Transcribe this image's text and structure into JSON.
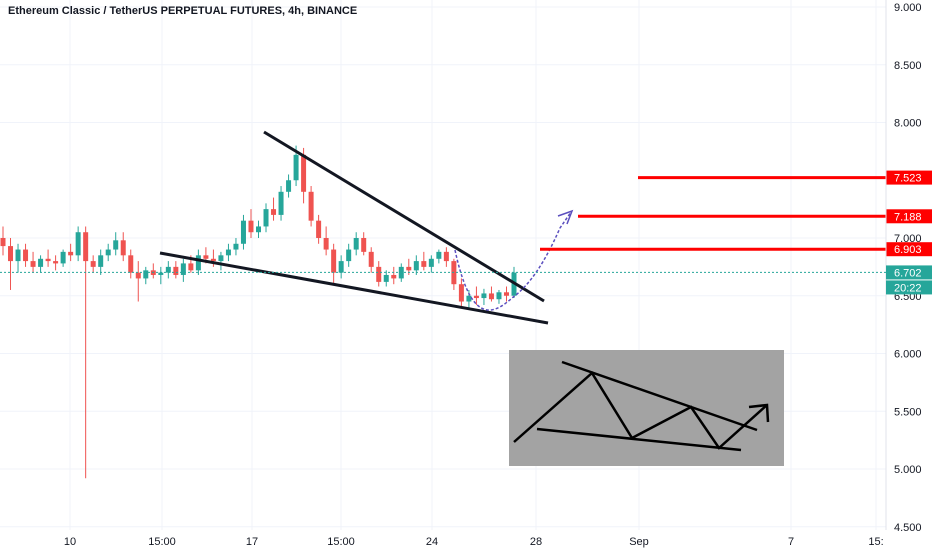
{
  "title": "Ethereum Classic / TetherUS PERPETUAL FUTURES, 4h, BINANCE",
  "colors": {
    "up": "#26a69a",
    "down": "#ef5350",
    "grid": "#f0f3fa",
    "axis_text": "#131722",
    "resistance": "#ff0000",
    "trendline": "#131722",
    "projection": "#5b4fbe",
    "current_price_bg": "#26a69a",
    "inset_bg": "#a3a3a3"
  },
  "chart_data": {
    "type": "candlestick",
    "title": "Ethereum Classic / TetherUS PERPETUAL FUTURES, 4h, BINANCE",
    "x_ticks": [
      "10",
      "15:00",
      "17",
      "15:00",
      "24",
      "28",
      "Sep",
      "7",
      "15:"
    ],
    "y_ticks": [
      "9.000",
      "8.500",
      "8.000",
      "7.000",
      "6.500",
      "6.000",
      "5.500",
      "5.000",
      "4.500"
    ],
    "ylim": [
      4.5,
      9.0
    ],
    "grid": true,
    "current_price": "6.702",
    "countdown": "20:22",
    "resistance_levels": [
      {
        "label": "7.523",
        "value": 7.523
      },
      {
        "label": "7.188",
        "value": 7.188
      },
      {
        "label": "6.903",
        "value": 6.903
      }
    ],
    "candles": [
      {
        "o": 7.0,
        "h": 7.1,
        "l": 6.85,
        "c": 6.93
      },
      {
        "o": 6.93,
        "h": 7.0,
        "l": 6.55,
        "c": 6.8
      },
      {
        "o": 6.8,
        "h": 6.95,
        "l": 6.7,
        "c": 6.9
      },
      {
        "o": 6.9,
        "h": 6.95,
        "l": 6.75,
        "c": 6.8
      },
      {
        "o": 6.8,
        "h": 6.88,
        "l": 6.7,
        "c": 6.75
      },
      {
        "o": 6.75,
        "h": 6.85,
        "l": 6.7,
        "c": 6.82
      },
      {
        "o": 6.82,
        "h": 6.9,
        "l": 6.75,
        "c": 6.8
      },
      {
        "o": 6.8,
        "h": 6.85,
        "l": 6.72,
        "c": 6.78
      },
      {
        "o": 6.78,
        "h": 6.9,
        "l": 6.75,
        "c": 6.88
      },
      {
        "o": 6.88,
        "h": 6.95,
        "l": 6.8,
        "c": 6.85
      },
      {
        "o": 6.85,
        "h": 7.1,
        "l": 6.8,
        "c": 7.05
      },
      {
        "o": 7.05,
        "h": 7.1,
        "l": 4.92,
        "c": 6.8
      },
      {
        "o": 6.8,
        "h": 6.85,
        "l": 6.7,
        "c": 6.75
      },
      {
        "o": 6.75,
        "h": 6.9,
        "l": 6.68,
        "c": 6.85
      },
      {
        "o": 6.85,
        "h": 6.95,
        "l": 6.8,
        "c": 6.9
      },
      {
        "o": 6.9,
        "h": 7.05,
        "l": 6.85,
        "c": 6.98
      },
      {
        "o": 6.98,
        "h": 7.05,
        "l": 6.8,
        "c": 6.85
      },
      {
        "o": 6.85,
        "h": 6.9,
        "l": 6.65,
        "c": 6.7
      },
      {
        "o": 6.7,
        "h": 6.8,
        "l": 6.45,
        "c": 6.65
      },
      {
        "o": 6.65,
        "h": 6.75,
        "l": 6.6,
        "c": 6.72
      },
      {
        "o": 6.72,
        "h": 6.78,
        "l": 6.65,
        "c": 6.68
      },
      {
        "o": 6.68,
        "h": 6.75,
        "l": 6.6,
        "c": 6.7
      },
      {
        "o": 6.7,
        "h": 6.8,
        "l": 6.65,
        "c": 6.75
      },
      {
        "o": 6.75,
        "h": 6.8,
        "l": 6.65,
        "c": 6.68
      },
      {
        "o": 6.68,
        "h": 6.82,
        "l": 6.62,
        "c": 6.78
      },
      {
        "o": 6.78,
        "h": 6.85,
        "l": 6.7,
        "c": 6.72
      },
      {
        "o": 6.72,
        "h": 6.9,
        "l": 6.68,
        "c": 6.85
      },
      {
        "o": 6.85,
        "h": 6.92,
        "l": 6.78,
        "c": 6.82
      },
      {
        "o": 6.82,
        "h": 6.9,
        "l": 6.75,
        "c": 6.8
      },
      {
        "o": 6.8,
        "h": 6.88,
        "l": 6.72,
        "c": 6.85
      },
      {
        "o": 6.85,
        "h": 6.95,
        "l": 6.8,
        "c": 6.9
      },
      {
        "o": 6.9,
        "h": 7.0,
        "l": 6.85,
        "c": 6.95
      },
      {
        "o": 6.95,
        "h": 7.2,
        "l": 6.9,
        "c": 7.15
      },
      {
        "o": 7.15,
        "h": 7.25,
        "l": 7.0,
        "c": 7.05
      },
      {
        "o": 7.05,
        "h": 7.15,
        "l": 7.0,
        "c": 7.1
      },
      {
        "o": 7.1,
        "h": 7.3,
        "l": 7.05,
        "c": 7.25
      },
      {
        "o": 7.25,
        "h": 7.35,
        "l": 7.15,
        "c": 7.2
      },
      {
        "o": 7.2,
        "h": 7.45,
        "l": 7.15,
        "c": 7.4
      },
      {
        "o": 7.4,
        "h": 7.55,
        "l": 7.35,
        "c": 7.5
      },
      {
        "o": 7.5,
        "h": 7.8,
        "l": 7.45,
        "c": 7.72
      },
      {
        "o": 7.72,
        "h": 7.78,
        "l": 7.3,
        "c": 7.4
      },
      {
        "o": 7.4,
        "h": 7.45,
        "l": 7.1,
        "c": 7.15
      },
      {
        "o": 7.15,
        "h": 7.2,
        "l": 6.95,
        "c": 7.0
      },
      {
        "o": 7.0,
        "h": 7.1,
        "l": 6.85,
        "c": 6.9
      },
      {
        "o": 6.9,
        "h": 6.95,
        "l": 6.6,
        "c": 6.7
      },
      {
        "o": 6.7,
        "h": 6.85,
        "l": 6.65,
        "c": 6.8
      },
      {
        "o": 6.8,
        "h": 6.95,
        "l": 6.75,
        "c": 6.9
      },
      {
        "o": 6.9,
        "h": 7.05,
        "l": 6.85,
        "c": 7.0
      },
      {
        "o": 7.0,
        "h": 7.05,
        "l": 6.85,
        "c": 6.88
      },
      {
        "o": 6.88,
        "h": 6.92,
        "l": 6.7,
        "c": 6.75
      },
      {
        "o": 6.75,
        "h": 6.8,
        "l": 6.58,
        "c": 6.62
      },
      {
        "o": 6.62,
        "h": 6.72,
        "l": 6.58,
        "c": 6.68
      },
      {
        "o": 6.68,
        "h": 6.75,
        "l": 6.6,
        "c": 6.65
      },
      {
        "o": 6.65,
        "h": 6.78,
        "l": 6.62,
        "c": 6.75
      },
      {
        "o": 6.75,
        "h": 6.82,
        "l": 6.68,
        "c": 6.72
      },
      {
        "o": 6.72,
        "h": 6.85,
        "l": 6.68,
        "c": 6.8
      },
      {
        "o": 6.8,
        "h": 6.88,
        "l": 6.72,
        "c": 6.75
      },
      {
        "o": 6.75,
        "h": 6.85,
        "l": 6.7,
        "c": 6.82
      },
      {
        "o": 6.82,
        "h": 6.9,
        "l": 6.78,
        "c": 6.88
      },
      {
        "o": 6.88,
        "h": 6.92,
        "l": 6.75,
        "c": 6.8
      },
      {
        "o": 6.8,
        "h": 6.82,
        "l": 6.55,
        "c": 6.6
      },
      {
        "o": 6.6,
        "h": 6.65,
        "l": 6.4,
        "c": 6.45
      },
      {
        "o": 6.45,
        "h": 6.55,
        "l": 6.38,
        "c": 6.5
      },
      {
        "o": 6.5,
        "h": 6.58,
        "l": 6.42,
        "c": 6.48
      },
      {
        "o": 6.48,
        "h": 6.56,
        "l": 6.42,
        "c": 6.52
      },
      {
        "o": 6.52,
        "h": 6.58,
        "l": 6.45,
        "c": 6.47
      },
      {
        "o": 6.47,
        "h": 6.55,
        "l": 6.43,
        "c": 6.53
      },
      {
        "o": 6.53,
        "h": 6.58,
        "l": 6.45,
        "c": 6.5
      },
      {
        "o": 6.5,
        "h": 6.75,
        "l": 6.48,
        "c": 6.7
      }
    ],
    "annotations": [
      "falling wedge trendlines",
      "cup projection arrow",
      "falling wedge breakout schematic"
    ]
  }
}
